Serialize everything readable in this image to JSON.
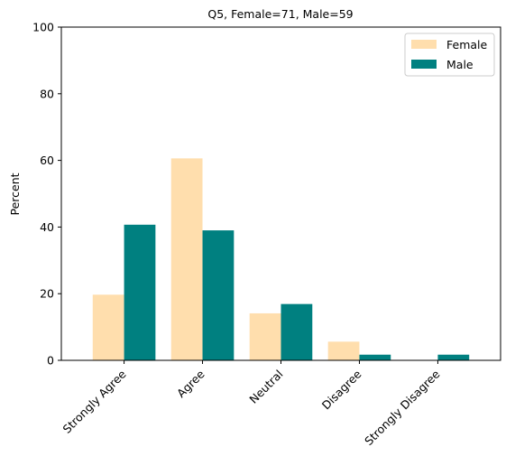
{
  "chart_data": {
    "type": "bar",
    "title": "Q5, Female=71, Male=59",
    "xlabel": "",
    "ylabel": "Percent",
    "ylim": [
      0,
      100
    ],
    "yticks": [
      0,
      20,
      40,
      60,
      80,
      100
    ],
    "categories": [
      "Strongly Agree",
      "Agree",
      "Neutral",
      "Disagree",
      "Strongly Disagree"
    ],
    "series": [
      {
        "name": "Female",
        "color": "#ffdead",
        "values": [
          19.7,
          60.6,
          14.1,
          5.6,
          0.0
        ]
      },
      {
        "name": "Male",
        "color": "#008080",
        "values": [
          40.7,
          39.0,
          16.9,
          1.7,
          1.7
        ]
      }
    ],
    "legend_position": "top-right",
    "grid": false
  }
}
